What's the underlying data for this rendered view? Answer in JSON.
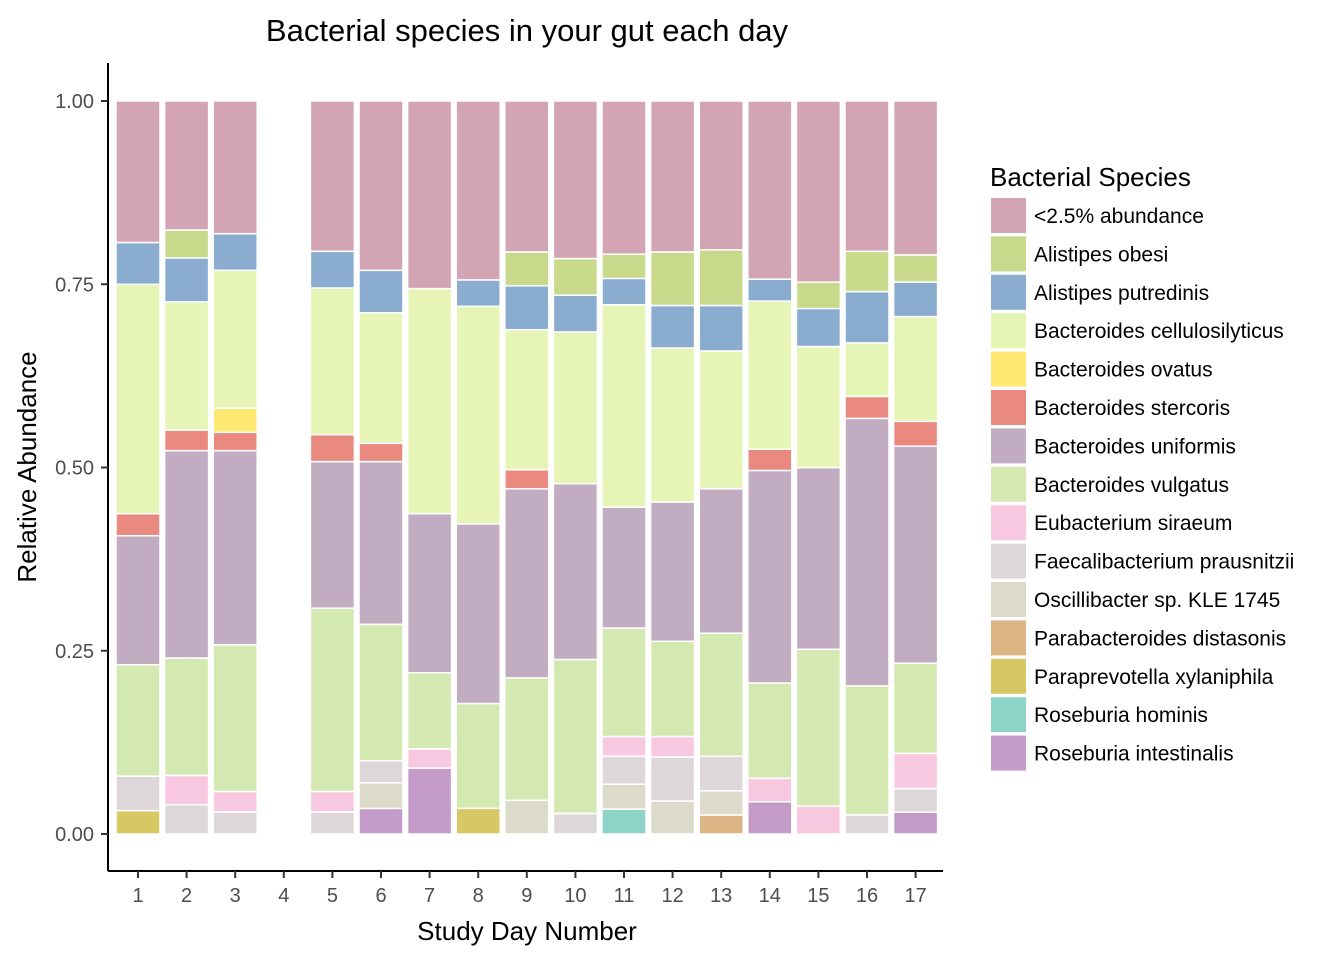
{
  "chart_data": {
    "type": "bar",
    "stacked": true,
    "title": "Bacterial species in your gut each day",
    "xlabel": "Study Day Number",
    "ylabel": "Relative Abundance",
    "ylim": [
      0,
      1.05
    ],
    "yticks": [
      "0.00",
      "0.25",
      "0.50",
      "0.75",
      "1.00"
    ],
    "categories": [
      "1",
      "2",
      "3",
      "4",
      "5",
      "6",
      "7",
      "8",
      "9",
      "10",
      "11",
      "12",
      "13",
      "14",
      "15",
      "16",
      "17"
    ],
    "legend_title": "Bacterial Species",
    "legend_position": "right",
    "grid": false,
    "series": [
      {
        "name": "Roseburia intestinalis",
        "color": "#C49BC8",
        "values": [
          0,
          0,
          0,
          0,
          0,
          0.035,
          0.09,
          0,
          0,
          0,
          0,
          0,
          0,
          0.044,
          0,
          0,
          0.03
        ]
      },
      {
        "name": "Roseburia hominis",
        "color": "#8DD3C7",
        "values": [
          0,
          0,
          0,
          0,
          0,
          0,
          0,
          0,
          0,
          0,
          0.034,
          0,
          0,
          0,
          0,
          0,
          0
        ]
      },
      {
        "name": "Paraprevotella xylaniphila",
        "color": "#D7C864",
        "values": [
          0.032,
          0,
          0,
          0,
          0,
          0,
          0,
          0.035,
          0,
          0,
          0,
          0,
          0,
          0,
          0,
          0,
          0
        ]
      },
      {
        "name": "Parabacteroides distasonis",
        "color": "#DDB585",
        "values": [
          0,
          0,
          0,
          0,
          0,
          0,
          0,
          0,
          0,
          0,
          0,
          0,
          0.026,
          0,
          0,
          0,
          0
        ]
      },
      {
        "name": "Oscillibacter sp. KLE 1745",
        "color": "#DCDACA",
        "values": [
          0,
          0,
          0,
          0,
          0,
          0.035,
          0,
          0,
          0.046,
          0,
          0.034,
          0.045,
          0.033,
          0,
          0,
          0,
          0
        ]
      },
      {
        "name": "Faecalibacterium prausnitzii",
        "color": "#DED7DA",
        "values": [
          0.047,
          0.04,
          0.03,
          0,
          0.03,
          0.03,
          0,
          0,
          0,
          0.028,
          0.038,
          0.06,
          0.047,
          0,
          0,
          0.026,
          0.032
        ]
      },
      {
        "name": "Eubacterium siraeum",
        "color": "#F8C8E0",
        "values": [
          0,
          0.04,
          0.028,
          0,
          0.028,
          0,
          0.026,
          0,
          0,
          0,
          0.027,
          0.028,
          0,
          0.032,
          0.038,
          0,
          0.048
        ]
      },
      {
        "name": "Bacteroides vulgatus",
        "color": "#D4E9B2",
        "values": [
          0.152,
          0.16,
          0.2,
          0,
          0.25,
          0.186,
          0.104,
          0.143,
          0.167,
          0.21,
          0.148,
          0.13,
          0.168,
          0.13,
          0.214,
          0.176,
          0.123
        ]
      },
      {
        "name": "Bacteroides uniformis",
        "color": "#C2ACC2",
        "values": [
          0.176,
          0.283,
          0.265,
          0,
          0.2,
          0.222,
          0.217,
          0.245,
          0.258,
          0.24,
          0.165,
          0.19,
          0.197,
          0.29,
          0.248,
          0.365,
          0.296
        ]
      },
      {
        "name": "Bacteroides stercoris",
        "color": "#E9897F",
        "values": [
          0.03,
          0.028,
          0.025,
          0,
          0.037,
          0.025,
          0,
          0,
          0.026,
          0,
          0,
          0,
          0,
          0.029,
          0,
          0.03,
          0.034
        ]
      },
      {
        "name": "Bacteroides ovatus",
        "color": "#FEE872",
        "values": [
          0,
          0,
          0.033,
          0,
          0,
          0,
          0,
          0,
          0,
          0,
          0,
          0,
          0,
          0,
          0,
          0,
          0
        ]
      },
      {
        "name": "Bacteroides cellulosilyticus",
        "color": "#E6F4B6",
        "values": [
          0.313,
          0.175,
          0.188,
          0,
          0.2,
          0.178,
          0.307,
          0.297,
          0.191,
          0.207,
          0.276,
          0.21,
          0.188,
          0.202,
          0.165,
          0.073,
          0.143
        ]
      },
      {
        "name": "Alistipes putredinis",
        "color": "#8AACCF",
        "values": [
          0.057,
          0.06,
          0.05,
          0,
          0.05,
          0.058,
          0,
          0.036,
          0.06,
          0.05,
          0.036,
          0.058,
          0.062,
          0.03,
          0.052,
          0.07,
          0.047
        ]
      },
      {
        "name": "Alistipes obesi",
        "color": "#C8D98C",
        "values": [
          0,
          0.038,
          0,
          0,
          0,
          0,
          0,
          0,
          0.046,
          0.05,
          0.033,
          0.073,
          0.076,
          0,
          0.036,
          0.055,
          0.037
        ]
      },
      {
        "name": "<2.5% abundance",
        "color": "#D2A4B4",
        "values": [
          0.193,
          0.176,
          0.181,
          0,
          0.205,
          0.231,
          0.256,
          0.244,
          0.206,
          0.215,
          0.209,
          0.206,
          0.203,
          0.243,
          0.247,
          0.205,
          0.21
        ]
      }
    ],
    "legend_order": [
      "<2.5% abundance",
      "Alistipes obesi",
      "Alistipes putredinis",
      "Bacteroides cellulosilyticus",
      "Bacteroides ovatus",
      "Bacteroides stercoris",
      "Bacteroides uniformis",
      "Bacteroides vulgatus",
      "Eubacterium siraeum",
      "Faecalibacterium prausnitzii",
      "Oscillibacter sp. KLE 1745",
      "Parabacteroides distasonis",
      "Paraprevotella xylaniphila",
      "Roseburia hominis",
      "Roseburia intestinalis"
    ]
  }
}
